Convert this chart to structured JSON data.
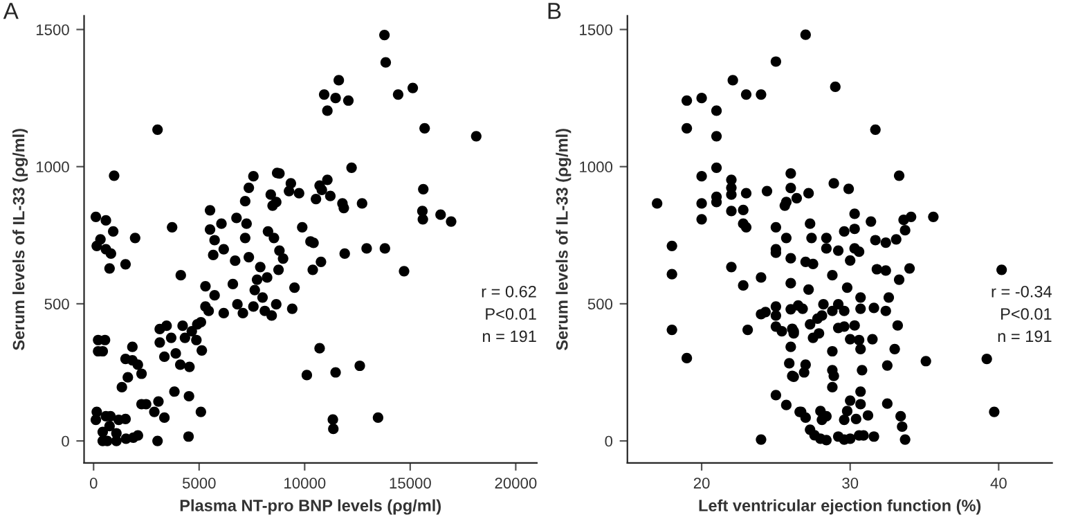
{
  "chart_data": [
    {
      "type": "scatter",
      "title": "A",
      "xlabel": "Plasma NT-pro BNP levels (ρg/ml)",
      "ylabel": "Serum levels of IL-33 (ρg/ml)",
      "color": "#000000",
      "marker": "circle",
      "xlim": [
        -450,
        21000
      ],
      "ylim": [
        -80,
        1550
      ],
      "xticks": [
        0,
        5000,
        10000,
        15000,
        20000
      ],
      "yticks": [
        0,
        500,
        1000,
        1500
      ],
      "annotations": [
        "r = 0.62",
        "P<0.01",
        "n = 191"
      ],
      "x": [
        3030,
        973,
        108,
        584,
        930,
        325,
        151,
        584,
        822,
        757,
        1514,
        1968,
        3720,
        4131,
        5300,
        5517,
        5517,
        5733,
        6057,
        6166,
        5668,
        6771,
        7247,
        7182,
        7355,
        7182,
        7572,
        6706,
        7355,
        6598,
        7897,
        7745,
        8221,
        7636,
        8394,
        8481,
        8264,
        8545,
        8697,
        5300,
        5733,
        5452,
        6166,
        6814,
        7074,
        7572,
        8005,
        8113,
        8438,
        8654,
        3135,
        3459,
        3677,
        3135,
        4219,
        4329,
        4653,
        4913,
        5084,
        4870,
        5127,
        3894,
        3355,
        4108,
        4543,
        3829,
        4520,
        5084,
        216,
        540,
        216,
        433,
        1838,
        1514,
        1838,
        2097,
        2272,
        1623,
        1341,
        2272,
        2488,
        3072,
        2878,
        3355,
        151,
        108,
        584,
        800,
        1190,
        1514,
        757,
        433,
        1082,
        433,
        649,
        1082,
        1536,
        1882,
        2100,
        3030,
        4499,
        13780,
        13840,
        11617,
        10925,
        11466,
        12071,
        11076,
        14429,
        15122,
        15684,
        18129,
        12222,
        8805,
        9346,
        9259,
        9735,
        8653,
        10709,
        11076,
        10814,
        11216,
        10536,
        11790,
        11855,
        12720,
        15620,
        15577,
        15600,
        16440,
        16939,
        9885,
        10276,
        10420,
        8805,
        8978,
        10773,
        11898,
        12937,
        13802,
        10384,
        14710,
        8762,
        9519,
        9411,
        10709,
        10103,
        11466,
        12612,
        11336,
        11358,
        13477
      ],
      "values": [
        1135,
        967,
        817,
        804,
        764,
        735,
        711,
        699,
        683,
        629,
        644,
        740,
        779,
        604,
        564,
        841,
        771,
        732,
        792,
        699,
        678,
        813,
        792,
        740,
        923,
        874,
        965,
        657,
        670,
        572,
        634,
        588,
        596,
        550,
        898,
        858,
        764,
        740,
        977,
        490,
        531,
        474,
        466,
        498,
        466,
        490,
        523,
        474,
        457,
        498,
        408,
        420,
        376,
        359,
        420,
        376,
        400,
        425,
        433,
        368,
        330,
        319,
        307,
        278,
        270,
        180,
        163,
        106,
        368,
        368,
        327,
        327,
        343,
        299,
        294,
        278,
        245,
        232,
        196,
        134,
        134,
        144,
        106,
        85,
        106,
        77,
        90,
        90,
        77,
        80,
        54,
        33,
        28,
        0,
        0,
        0,
        8,
        12,
        20,
        0,
        16,
        1480,
        1380,
        1315,
        1263,
        1250,
        1241,
        1204,
        1263,
        1287,
        1140,
        1111,
        996,
        975,
        939,
        911,
        903,
        871,
        931,
        952,
        915,
        893,
        882,
        866,
        849,
        866,
        918,
        838,
        808,
        825,
        800,
        779,
        727,
        722,
        694,
        665,
        653,
        683,
        702,
        702,
        624,
        619,
        624,
        559,
        482,
        338,
        240,
        250,
        274,
        78,
        44,
        85
      ]
    },
    {
      "type": "scatter",
      "title": "B",
      "xlabel": "Left ventricular ejection function (%)",
      "ylabel": "Serum levels of IL-33 (ρg/ml)",
      "color": "#000000",
      "marker": "circle",
      "xlim": [
        15,
        43.6
      ],
      "ylim": [
        -80,
        1550
      ],
      "xticks": [
        20,
        30,
        40
      ],
      "yticks": [
        0,
        500,
        1000,
        1500
      ],
      "annotations": [
        "r = -0.34",
        "P<0.01",
        "n = 191"
      ],
      "x": [
        25.0,
        22.1,
        19.0,
        20.0,
        23.0,
        24.0,
        21.0,
        19.0,
        21.0,
        21.0,
        20.0,
        22.0,
        22.0,
        22.0,
        23.0,
        24.4,
        17.0,
        20.0,
        21.0,
        21.0,
        20.0,
        22.0,
        22.8,
        22.8,
        23.0,
        25.0,
        25.7,
        25.6,
        26.0,
        26.0,
        26.4,
        25.7,
        25.0,
        25.0,
        26.0,
        18.0,
        18.0,
        22.0,
        22.8,
        24.0,
        26.0,
        18.0,
        19.0,
        23.1,
        24.0,
        24.3,
        25.0,
        25.0,
        25.0,
        25.4,
        26.0,
        26.5,
        26.1,
        26.2,
        26.0,
        25.9,
        26.1,
        25.0,
        25.7,
        26.6,
        24.0,
        27.0,
        29.0,
        31.7,
        33.3,
        28.9,
        29.9,
        27.2,
        30.3,
        34.1,
        33.6,
        35.6,
        31.4,
        27.3,
        29.6,
        30.3,
        33.7,
        27.4,
        28.4,
        31.7,
        32.4,
        33.1,
        28.4,
        29.2,
        30.3,
        30.6,
        30.0,
        27.0,
        27.5,
        31.8,
        32.4,
        34.0,
        33.3,
        40.2,
        28.8,
        27.2,
        29.8,
        30.7,
        32.6,
        30.7,
        31.6,
        32.4,
        29.2,
        28.2,
        28.8,
        29.6,
        26.8,
        27.3,
        27.8,
        28.1,
        26.2,
        27.5,
        27.9,
        29.2,
        29.6,
        30.3,
        30.0,
        30.6,
        31.5,
        33.2,
        30.7,
        33.0,
        28.8,
        35.1,
        39.2,
        27.0,
        26.2,
        26.9,
        28.8,
        28.9,
        30.8,
        32.5,
        28.8,
        26.7,
        27.0,
        28.0,
        28.1,
        28.4,
        30.0,
        30.7,
        30.7,
        29.8,
        29.6,
        30.4,
        31.2,
        32.5,
        33.4,
        33.5,
        33.7,
        31.6,
        27.3,
        27.6,
        28.0,
        28.4,
        29.2,
        29.6,
        30.0,
        30.6,
        30.9,
        39.7
      ],
      "values": [
        1383,
        1315,
        1241,
        1250,
        1263,
        1263,
        1204,
        1140,
        1111,
        996,
        965,
        952,
        923,
        898,
        903,
        911,
        866,
        866,
        890,
        871,
        808,
        838,
        842,
        792,
        779,
        779,
        871,
        858,
        975,
        922,
        885,
        740,
        699,
        686,
        666,
        711,
        608,
        634,
        567,
        596,
        575,
        405,
        302,
        405,
        462,
        470,
        490,
        457,
        417,
        400,
        480,
        494,
        409,
        392,
        343,
        283,
        237,
        167,
        131,
        106,
        5,
        1481,
        1291,
        1135,
        967,
        939,
        919,
        903,
        828,
        817,
        806,
        817,
        800,
        792,
        764,
        773,
        768,
        740,
        740,
        732,
        723,
        735,
        702,
        694,
        702,
        690,
        658,
        653,
        645,
        626,
        621,
        629,
        588,
        624,
        604,
        552,
        559,
        523,
        523,
        482,
        485,
        474,
        498,
        498,
        474,
        474,
        482,
        425,
        446,
        457,
        400,
        376,
        392,
        412,
        417,
        421,
        371,
        368,
        371,
        421,
        335,
        335,
        327,
        291,
        299,
        278,
        234,
        250,
        258,
        237,
        258,
        275,
        196,
        106,
        85,
        109,
        77,
        90,
        147,
        180,
        134,
        109,
        77,
        80,
        93,
        136,
        90,
        52,
        5,
        16,
        41,
        21,
        8,
        3,
        16,
        5,
        8,
        20,
        20,
        106
      ]
    }
  ]
}
